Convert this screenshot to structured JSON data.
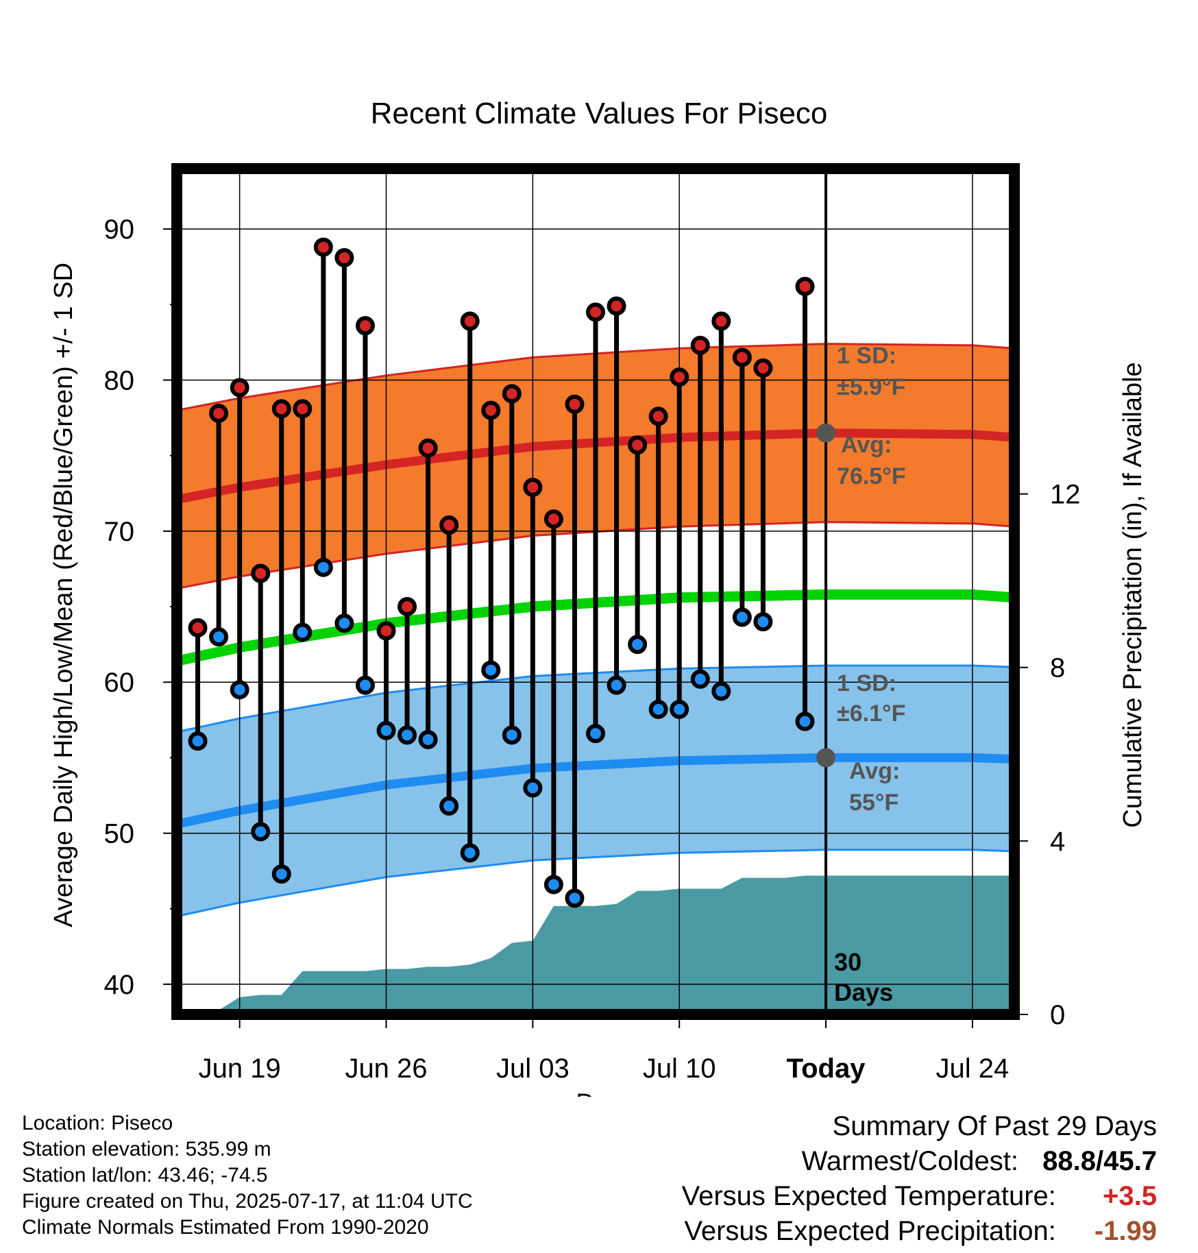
{
  "chart_data": {
    "type": "line",
    "title": "Recent Climate Values For Piseco",
    "xlabel": "Day",
    "ylabel": "Average Daily High/Low/Mean (Red/Blue/Green) +/- 1 SD",
    "y2label": "Cumulative Precipitation (in), If Available",
    "ylim": [
      38,
      94
    ],
    "y2lim": [
      0,
      19.5
    ],
    "yticks": [
      40,
      50,
      60,
      70,
      80,
      90
    ],
    "y2ticks": [
      0,
      4,
      8,
      12
    ],
    "x_tick_labels": [
      "Jun 19",
      "Jun 26",
      "Jul 03",
      "Jul 10",
      "Today",
      "Jul 24"
    ],
    "x_tick_days": [
      "2025-06-19",
      "2025-06-26",
      "2025-07-03",
      "2025-07-10",
      "2025-07-17",
      "2025-07-24"
    ],
    "xlim": [
      "2025-06-16",
      "2025-07-26"
    ],
    "today": "2025-07-17",
    "colors": {
      "high_line": "#d42424",
      "high_band": "#f47a2c",
      "low_line": "#1e8cf0",
      "low_band": "#86c2ea",
      "mean_line": "#00d400",
      "precip": "#4a9aa4",
      "high_dot": "#d42424",
      "low_dot": "#1e8cf0",
      "annotation": "#555555"
    },
    "normals": {
      "days": [
        "2025-06-16",
        "2025-06-19",
        "2025-06-26",
        "2025-07-03",
        "2025-07-10",
        "2025-07-17",
        "2025-07-24",
        "2025-07-26"
      ],
      "high_avg": [
        72.1,
        72.9,
        74.4,
        75.6,
        76.2,
        76.5,
        76.4,
        76.2
      ],
      "high_sd": 5.9,
      "low_avg": [
        50.6,
        51.5,
        53.2,
        54.3,
        54.8,
        55.0,
        55.0,
        54.9
      ],
      "low_sd": 6.1,
      "mean_avg": [
        61.4,
        62.3,
        63.9,
        65.0,
        65.6,
        65.8,
        65.8,
        65.6
      ]
    },
    "observed": {
      "days": [
        "2025-06-17",
        "2025-06-18",
        "2025-06-19",
        "2025-06-20",
        "2025-06-21",
        "2025-06-22",
        "2025-06-23",
        "2025-06-24",
        "2025-06-25",
        "2025-06-26",
        "2025-06-27",
        "2025-06-28",
        "2025-06-29",
        "2025-06-30",
        "2025-07-01",
        "2025-07-02",
        "2025-07-03",
        "2025-07-04",
        "2025-07-05",
        "2025-07-06",
        "2025-07-07",
        "2025-07-08",
        "2025-07-09",
        "2025-07-10",
        "2025-07-11",
        "2025-07-12",
        "2025-07-13",
        "2025-07-14",
        "2025-07-16"
      ],
      "high": [
        63.6,
        77.8,
        79.5,
        67.2,
        78.1,
        78.1,
        88.8,
        88.1,
        83.6,
        63.4,
        65.0,
        75.5,
        70.4,
        83.9,
        78.0,
        79.1,
        72.9,
        70.8,
        78.4,
        84.5,
        84.9,
        75.7,
        77.6,
        80.2,
        82.3,
        83.9,
        81.5,
        80.8,
        86.2
      ],
      "low": [
        56.1,
        63.0,
        59.5,
        50.1,
        47.3,
        63.3,
        67.6,
        63.9,
        59.8,
        56.8,
        56.5,
        56.2,
        51.8,
        48.7,
        60.8,
        56.5,
        53.0,
        46.6,
        45.7,
        56.6,
        59.8,
        62.5,
        58.2,
        58.2,
        60.2,
        59.4,
        64.3,
        64.0,
        57.4
      ]
    },
    "precip": {
      "days": [
        "2025-06-16",
        "2025-06-17",
        "2025-06-18",
        "2025-06-19",
        "2025-06-20",
        "2025-06-21",
        "2025-06-22",
        "2025-06-23",
        "2025-06-24",
        "2025-06-25",
        "2025-06-26",
        "2025-06-27",
        "2025-06-28",
        "2025-06-29",
        "2025-06-30",
        "2025-07-01",
        "2025-07-02",
        "2025-07-03",
        "2025-07-04",
        "2025-07-05",
        "2025-07-06",
        "2025-07-07",
        "2025-07-08",
        "2025-07-09",
        "2025-07-10",
        "2025-07-11",
        "2025-07-12",
        "2025-07-13",
        "2025-07-14",
        "2025-07-15",
        "2025-07-16",
        "2025-07-17",
        "2025-07-26"
      ],
      "cumulative": [
        0,
        0,
        0.1,
        0.4,
        0.45,
        0.45,
        1.0,
        1.0,
        1.0,
        1.0,
        1.05,
        1.05,
        1.1,
        1.1,
        1.15,
        1.3,
        1.65,
        1.7,
        2.5,
        2.5,
        2.5,
        2.55,
        2.85,
        2.85,
        2.9,
        2.9,
        2.9,
        3.15,
        3.15,
        3.15,
        3.2,
        3.2,
        3.2
      ]
    },
    "annotations": {
      "high_sd_label": "1 SD:",
      "high_sd_value": "±5.9°F",
      "high_avg_label": "Avg:",
      "high_avg_value": "76.5°F",
      "low_sd_label": "1 SD:",
      "low_sd_value": "±6.1°F",
      "low_avg_label": "Avg:",
      "low_avg_value": "55°F",
      "precip_label_1": "30",
      "precip_label_2": "Days"
    }
  },
  "info": {
    "location": "Location: Piseco",
    "elevation": "Station elevation: 535.99 m",
    "latlon": "Station lat/lon: 43.46; -74.5",
    "created": "Figure created on Thu, 2025-07-17, at 11:04 UTC",
    "normals": "Climate Normals Estimated From 1990-2020"
  },
  "summary": {
    "title": "Summary Of Past 29 Days",
    "warmest_label": "Warmest/Coldest:",
    "warmest_value": "88.8",
    "coldest_value": "45.7",
    "temp_label": "Versus Expected Temperature:",
    "temp_value": "+3.5",
    "temp_color": "#d42424",
    "precip_label": "Versus Expected Precipitation:",
    "precip_value": "-1.99",
    "precip_color": "#a0522d"
  }
}
